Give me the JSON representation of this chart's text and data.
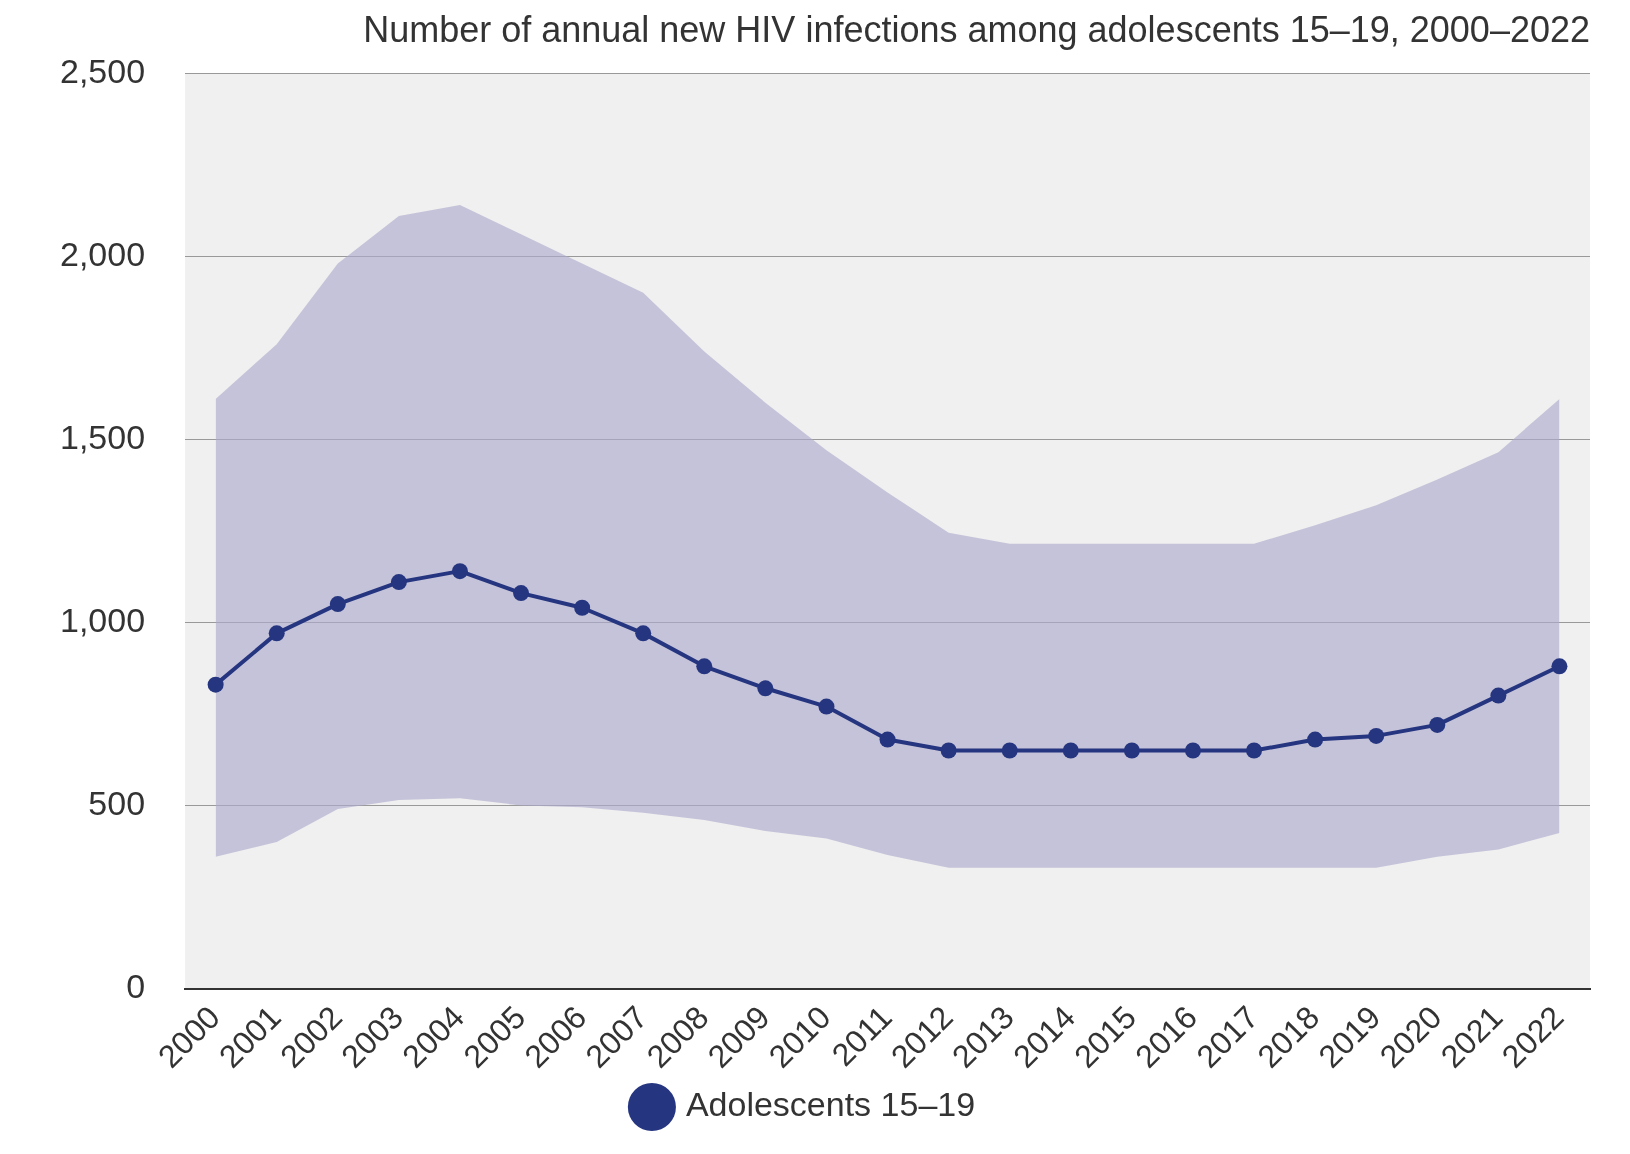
{
  "chart_data": {
    "type": "line",
    "title": "Number of annual new HIV infections among adolescents 15–19, 2000–2022",
    "categories": [
      "2000",
      "2001",
      "2002",
      "2003",
      "2004",
      "2005",
      "2006",
      "2007",
      "2008",
      "2009",
      "2010",
      "2011",
      "2012",
      "2013",
      "2014",
      "2015",
      "2016",
      "2017",
      "2018",
      "2019",
      "2020",
      "2021",
      "2022"
    ],
    "series": [
      {
        "name": "Adolescents 15–19",
        "color": "#253580",
        "values": [
          830,
          970,
          1050,
          1110,
          1140,
          1080,
          1040,
          970,
          880,
          820,
          770,
          680,
          650,
          650,
          650,
          650,
          650,
          650,
          680,
          690,
          720,
          800,
          880
        ],
        "lower": [
          360,
          400,
          490,
          515,
          520,
          500,
          495,
          480,
          460,
          430,
          410,
          365,
          330,
          330,
          330,
          330,
          330,
          330,
          330,
          330,
          360,
          380,
          425
        ],
        "upper": [
          1610,
          1760,
          1980,
          2110,
          2140,
          2060,
          1980,
          1900,
          1740,
          1600,
          1470,
          1355,
          1245,
          1215,
          1215,
          1215,
          1215,
          1215,
          1265,
          1320,
          1390,
          1465,
          1610
        ]
      }
    ],
    "ylim": [
      0,
      2500
    ],
    "yticks": [
      0,
      500,
      {
        "value": 1000,
        "label": "1,000"
      },
      {
        "value": 1500,
        "label": "1,500"
      },
      {
        "value": 2000,
        "label": "2,000"
      },
      {
        "value": 2500,
        "label": "2,500"
      }
    ],
    "grid": "y",
    "legend": "bottom",
    "marker": "circle",
    "line_style": "solid"
  }
}
